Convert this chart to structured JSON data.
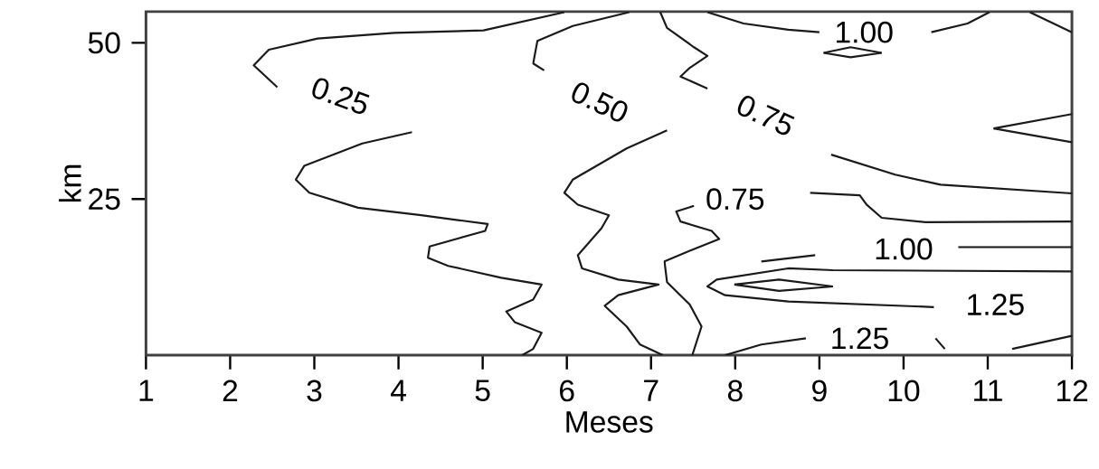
{
  "chart_data": {
    "type": "line",
    "xlabel": "Meses",
    "ylabel": "km",
    "xlim": [
      1,
      12
    ],
    "ylim": [
      0,
      55
    ],
    "xticks": [
      1,
      2,
      3,
      4,
      5,
      6,
      7,
      8,
      9,
      10,
      11,
      12
    ],
    "yticks": [
      25,
      50
    ],
    "grid": false,
    "marker": "none",
    "line_style": "solid",
    "series": [
      {
        "color": "#1a1a1a",
        "x": [
          5.97,
          5.01,
          3.95,
          3.04,
          2.46,
          2.28,
          2.56
        ],
        "values": [
          54.9,
          52.0,
          51.6,
          50.7,
          48.9,
          46.4,
          42.9
        ]
      },
      {
        "color": "#1a1a1a",
        "x": [
          4.16,
          3.57,
          2.88,
          2.78,
          2.94,
          3.52,
          4.27,
          5.06,
          5.03,
          4.37,
          4.35,
          4.59,
          5.22,
          5.7,
          5.6,
          5.28,
          5.38,
          5.7,
          5.6,
          5.47
        ],
        "values": [
          35.7,
          33.9,
          30.3,
          28.1,
          26.0,
          23.6,
          22.4,
          21.0,
          19.9,
          17.4,
          15.6,
          14.3,
          12.4,
          11.3,
          8.9,
          7.0,
          5.3,
          3.6,
          1.0,
          0
        ]
      },
      {
        "color": "#1a1a1a",
        "x": [
          6.74,
          6.07,
          5.65,
          5.6,
          5.73
        ],
        "values": [
          54.9,
          52.7,
          50.3,
          46.7,
          45.6
        ]
      },
      {
        "color": "#1a1a1a",
        "x": [
          7.19,
          6.71,
          6.07,
          5.97,
          6.13,
          6.5,
          6.41,
          6.13,
          6.18,
          6.61,
          7.09,
          6.61,
          6.45,
          6.71,
          6.87,
          7.14
        ],
        "values": [
          36.0,
          33.1,
          28.1,
          26.0,
          24.1,
          22.4,
          20.3,
          16.0,
          13.9,
          12.1,
          11.3,
          9.6,
          7.9,
          4.6,
          1.7,
          0
        ]
      },
      {
        "color": "#1a1a1a",
        "x": [
          7.11,
          7.19,
          7.51,
          7.67,
          7.46,
          7.35,
          7.67
        ],
        "values": [
          54.9,
          52.4,
          49.3,
          47.9,
          46.0,
          44.6,
          42.7
        ]
      },
      {
        "color": "#1a1a1a",
        "x": [
          9.14,
          9.9,
          10.44,
          12
        ],
        "values": [
          32.1,
          28.9,
          27.3,
          25.9
        ]
      },
      {
        "color": "#1a1a1a",
        "x": [
          7.51,
          7.3,
          7.35,
          7.72,
          7.81,
          7.46,
          7.16,
          7.19,
          7.46,
          7.6,
          7.49
        ],
        "values": [
          23.9,
          23.0,
          21.4,
          19.9,
          18.6,
          16.7,
          15.0,
          11.7,
          8.1,
          4.6,
          0
        ]
      },
      {
        "color": "#1a1a1a",
        "x": [
          8.89,
          9.48,
          9.56,
          9.74,
          10.26,
          12
        ],
        "values": [
          26.0,
          25.6,
          24.1,
          22.0,
          21.3,
          21.4
        ]
      },
      {
        "color": "#1a1a1a",
        "x": [
          8.31,
          8.95
        ],
        "values": [
          15.0,
          16.0
        ]
      },
      {
        "color": "#1a1a1a",
        "x": [
          10.65,
          12
        ],
        "values": [
          17.3,
          17.3
        ]
      },
      {
        "color": "#1a1a1a",
        "x": [
          12,
          9.16,
          8.63,
          7.78,
          7.67,
          7.88,
          8.63,
          10.36
        ],
        "values": [
          13.4,
          13.6,
          13.9,
          12.1,
          11.0,
          9.6,
          8.6,
          7.7
        ]
      },
      {
        "color": "#1a1a1a",
        "x": [
          7.99,
          8.52,
          9.16
        ],
        "values": [
          11.3,
          12.1,
          11.0
        ]
      },
      {
        "color": "#1a1a1a",
        "x": [
          7.99,
          8.52,
          9.16
        ],
        "values": [
          11.3,
          10.3,
          11.0
        ]
      },
      {
        "color": "#1a1a1a",
        "x": [
          7.67,
          8.1,
          8.63,
          9.0
        ],
        "values": [
          54.9,
          53.1,
          52.1,
          51.7
        ]
      },
      {
        "color": "#1a1a1a",
        "x": [
          10.33,
          10.76,
          11.02
        ],
        "values": [
          51.7,
          53.1,
          54.9
        ]
      },
      {
        "color": "#1a1a1a",
        "x": [
          11.5,
          12
        ],
        "values": [
          54.9,
          51.7
        ]
      },
      {
        "color": "#1a1a1a",
        "x": [
          9.05,
          9.37,
          9.74
        ],
        "values": [
          48.4,
          49.3,
          48.4
        ]
      },
      {
        "color": "#1a1a1a",
        "x": [
          9.05,
          9.37,
          9.74
        ],
        "values": [
          48.4,
          47.7,
          48.4
        ]
      },
      {
        "color": "#1a1a1a",
        "x": [
          11.07,
          12
        ],
        "values": [
          36.3,
          38.6
        ]
      },
      {
        "color": "#1a1a1a",
        "x": [
          11.07,
          12
        ],
        "values": [
          36.3,
          34.1
        ]
      },
      {
        "color": "#1a1a1a",
        "x": [
          7.88,
          8.31,
          8.84
        ],
        "values": [
          0,
          1.7,
          2.7
        ]
      },
      {
        "color": "#1a1a1a",
        "x": [
          10.38,
          10.49
        ],
        "values": [
          2.7,
          1.0
        ]
      },
      {
        "color": "#1a1a1a",
        "x": [
          11.29,
          12
        ],
        "values": [
          1.0,
          3.1
        ]
      }
    ],
    "annotations": [
      "0.25",
      "0.50",
      "0.75",
      "0.75",
      "1.00",
      "1.00",
      "1.25",
      "1.25"
    ]
  }
}
